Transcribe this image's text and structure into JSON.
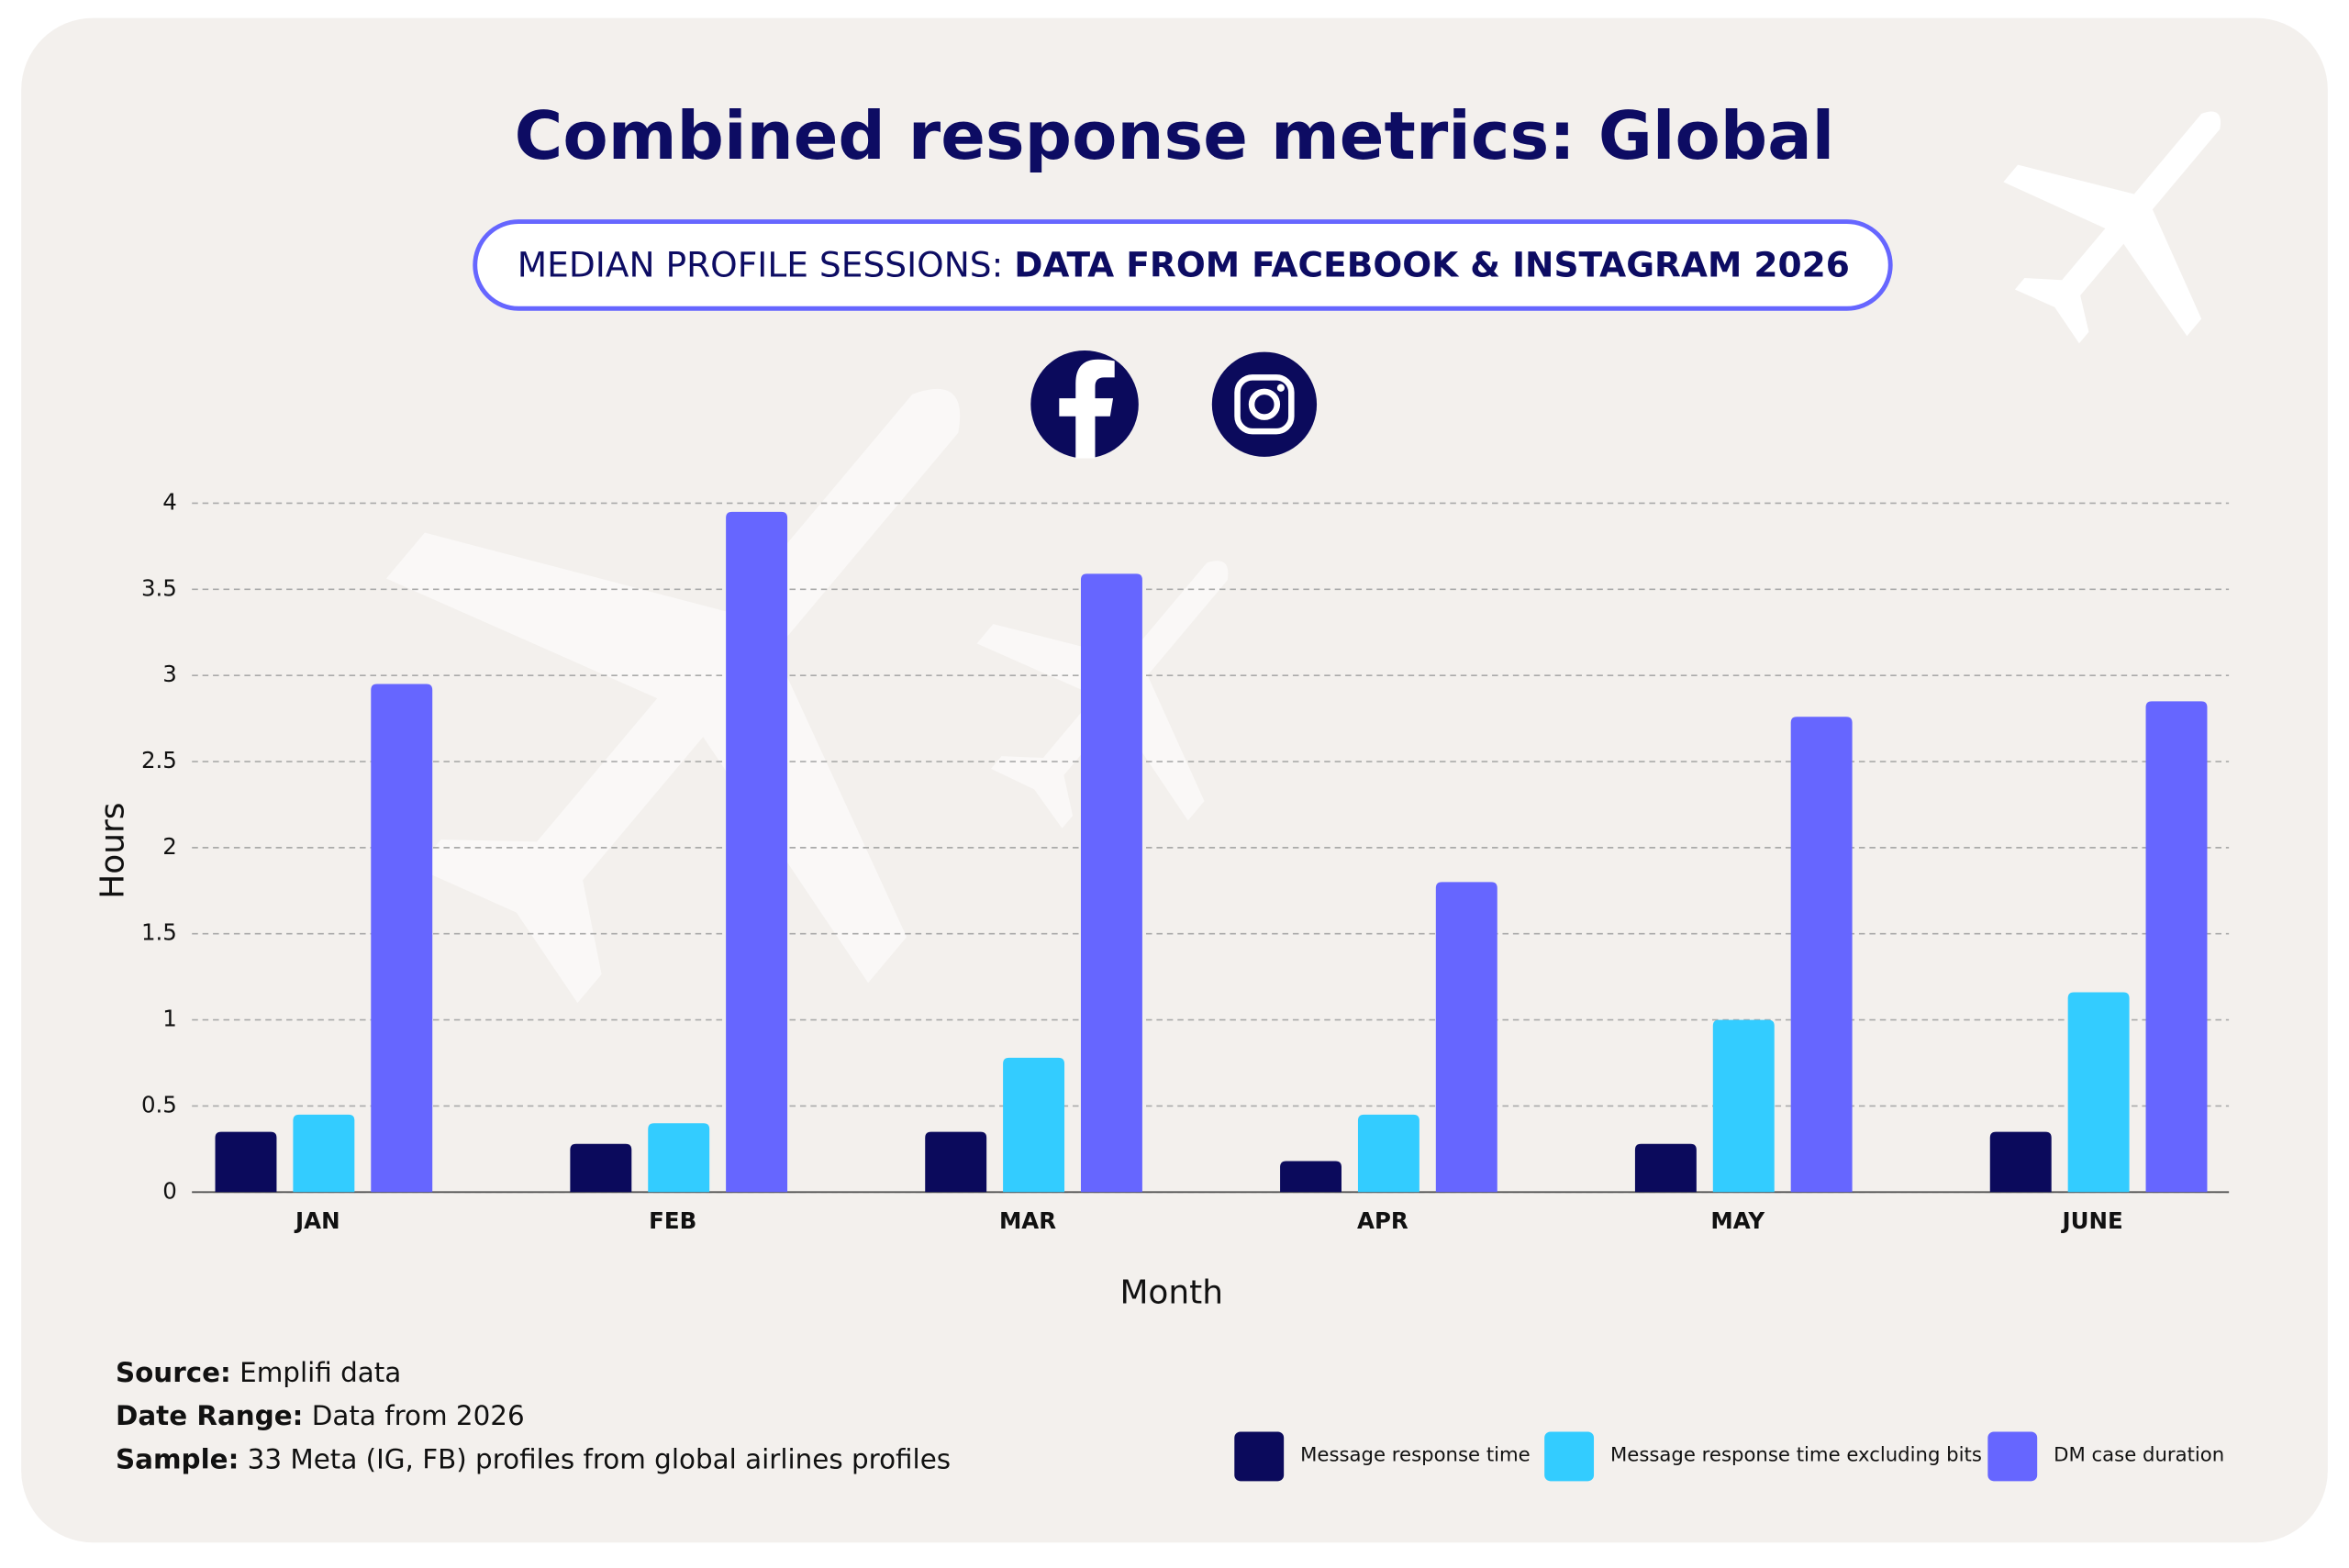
{
  "chart_data": {
    "type": "bar",
    "title": "Combined response metrics: Global",
    "subtitle_lead": "MEDIAN PROFILE SESSIONS:",
    "subtitle_bold": "DATA FROM FACEBOOK & INSTAGRAM 2026",
    "x_label": "Month",
    "y_label": "Hours",
    "categories": [
      "JAN",
      "FEB",
      "MAR",
      "APR",
      "MAY",
      "JUNE"
    ],
    "series": [
      {
        "name": "Message response time",
        "color": "#0b0a5c",
        "values": [
          0.35,
          0.28,
          0.35,
          0.18,
          0.28,
          0.35
        ]
      },
      {
        "name": "Message response time excluding bits",
        "color": "#33ccff",
        "values": [
          0.45,
          0.4,
          0.78,
          0.45,
          1.0,
          1.16
        ]
      },
      {
        "name": "DM case duration",
        "color": "#6666ff",
        "values": [
          2.95,
          3.95,
          3.59,
          1.8,
          2.76,
          2.85
        ]
      }
    ],
    "ylim": [
      0,
      4
    ],
    "yticks": [
      0,
      0.5,
      1,
      1.5,
      2,
      2.5,
      3,
      3.5,
      4
    ],
    "grid": true,
    "legend": "bottom-right",
    "notes": [
      {
        "label": "Source:",
        "text": "Emplifi data"
      },
      {
        "label": "Date Range:",
        "text": "Data from 2026"
      },
      {
        "label": "Sample:",
        "text": "33 Meta (IG, FB) profiles from global airlines profiles"
      }
    ]
  }
}
